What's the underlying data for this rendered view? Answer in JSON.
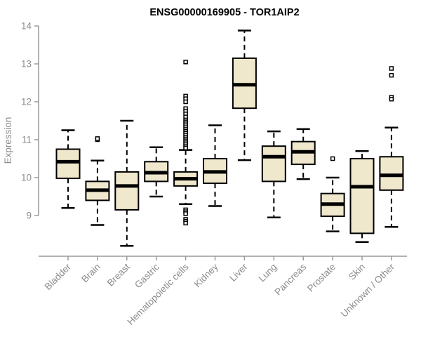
{
  "title": "ENSG00000169905 - TOR1AIP2",
  "colors": {
    "box_fill": "#efe8cd",
    "box_stroke": "#000000",
    "median": "#000000",
    "whisker": "#000000",
    "outlier_stroke": "#000000",
    "outlier_fill": "#ffffff",
    "axis": "#999999",
    "tick_label": "#8c8c8c",
    "title": "#000000",
    "background": "#ffffff"
  },
  "chart_data": {
    "type": "boxplot",
    "title": "ENSG00000169905 - TOR1AIP2",
    "xlabel": "",
    "ylabel": "Expression",
    "ylim": [
      9,
      14
    ],
    "yticks": [
      9,
      10,
      11,
      12,
      13,
      14
    ],
    "grid": false,
    "legend": "none",
    "categories": [
      "Bladder",
      "Brain",
      "Breast",
      "Gastric",
      "Hematopoietic cells",
      "Kidney",
      "Liver",
      "Lung",
      "Pancreas",
      "Prostate",
      "Skin",
      "Unknown / Other"
    ],
    "boxes": [
      {
        "name": "Bladder",
        "whisker_low": 9.2,
        "q1": 9.98,
        "median": 10.42,
        "q3": 10.75,
        "whisker_high": 11.25,
        "outliers": []
      },
      {
        "name": "Brain",
        "whisker_low": 8.75,
        "q1": 9.4,
        "median": 9.67,
        "q3": 9.9,
        "whisker_high": 10.45,
        "outliers": [
          11.0,
          11.03
        ]
      },
      {
        "name": "Breast",
        "whisker_low": 8.2,
        "q1": 9.15,
        "median": 9.78,
        "q3": 10.15,
        "whisker_high": 11.5,
        "outliers": []
      },
      {
        "name": "Gastric",
        "whisker_low": 9.5,
        "q1": 9.9,
        "median": 10.13,
        "q3": 10.42,
        "whisker_high": 10.8,
        "outliers": []
      },
      {
        "name": "Hematopoietic cells",
        "whisker_low": 9.3,
        "q1": 9.78,
        "median": 9.97,
        "q3": 10.15,
        "whisker_high": 10.73,
        "outliers": [
          13.05,
          12.15,
          12.08,
          12.0,
          11.82,
          11.75,
          11.68,
          11.6,
          11.52,
          11.47,
          11.42,
          11.37,
          11.32,
          11.27,
          11.22,
          11.17,
          11.12,
          11.07,
          11.02,
          10.97,
          10.92,
          10.87,
          10.82,
          10.78,
          9.15,
          9.1,
          9.05,
          8.9,
          8.85,
          8.8
        ]
      },
      {
        "name": "Kidney",
        "whisker_low": 9.25,
        "q1": 9.85,
        "median": 10.15,
        "q3": 10.5,
        "whisker_high": 11.38,
        "outliers": []
      },
      {
        "name": "Liver",
        "whisker_low": 10.46,
        "q1": 11.83,
        "median": 12.45,
        "q3": 13.15,
        "whisker_high": 13.88,
        "outliers": []
      },
      {
        "name": "Lung",
        "whisker_low": 8.95,
        "q1": 9.9,
        "median": 10.55,
        "q3": 10.83,
        "whisker_high": 11.22,
        "outliers": []
      },
      {
        "name": "Pancreas",
        "whisker_low": 9.96,
        "q1": 10.35,
        "median": 10.68,
        "q3": 10.95,
        "whisker_high": 11.28,
        "outliers": []
      },
      {
        "name": "Prostate",
        "whisker_low": 8.58,
        "q1": 8.98,
        "median": 9.3,
        "q3": 9.58,
        "whisker_high": 10.0,
        "outliers": [
          10.5
        ]
      },
      {
        "name": "Skin",
        "whisker_low": 8.3,
        "q1": 8.53,
        "median": 9.76,
        "q3": 10.5,
        "whisker_high": 10.7,
        "outliers": []
      },
      {
        "name": "Unknown / Other",
        "whisker_low": 8.7,
        "q1": 9.67,
        "median": 10.06,
        "q3": 10.55,
        "whisker_high": 11.32,
        "outliers": [
          12.88,
          12.7,
          12.12,
          12.07
        ]
      }
    ]
  }
}
